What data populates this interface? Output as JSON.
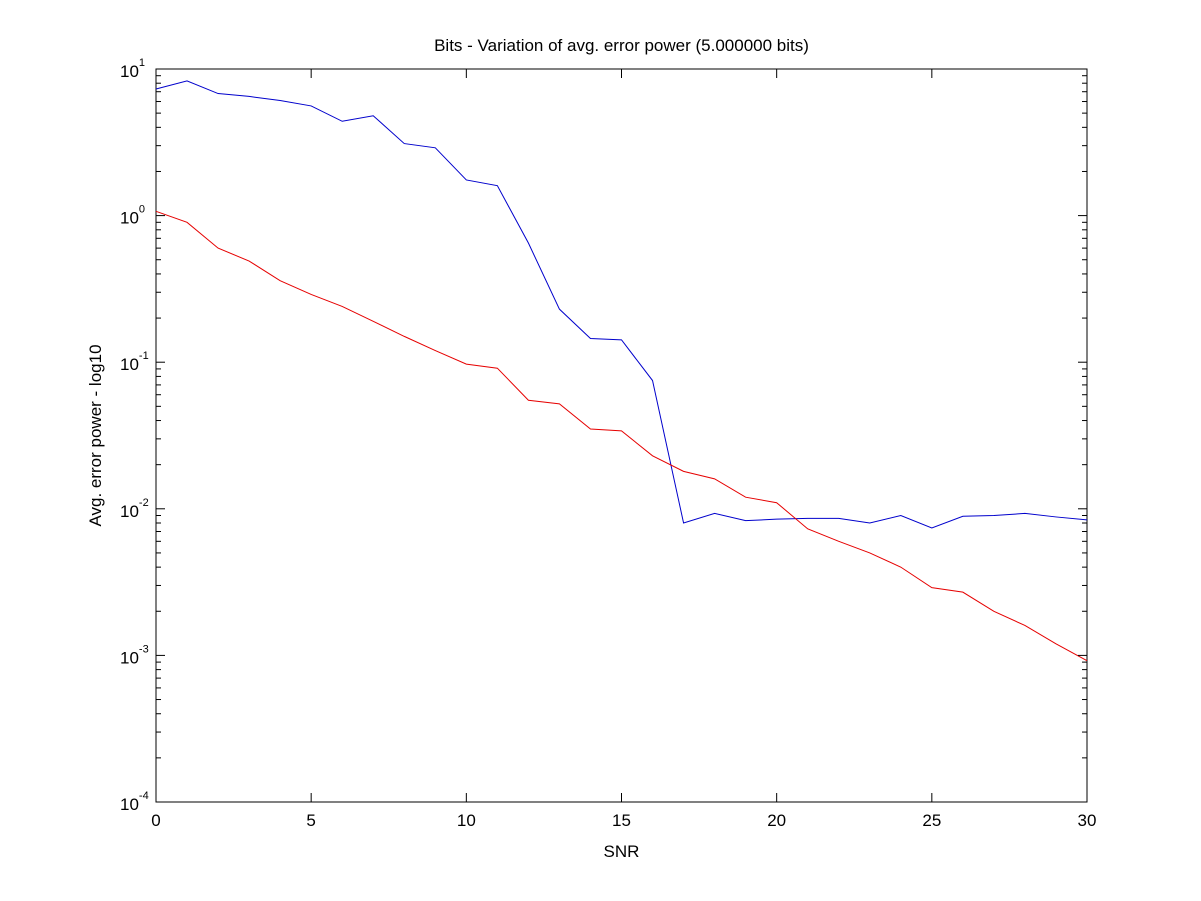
{
  "chart_data": {
    "type": "line",
    "title": "Bits - Variation of avg. error power (5.000000 bits)",
    "xlabel": "SNR",
    "ylabel": "Avg. error power - log10",
    "xlim": [
      0,
      30
    ],
    "ylim": [
      0.0001,
      10
    ],
    "yscale": "log",
    "grid": false,
    "legend": "none",
    "x_ticks": [
      0,
      5,
      10,
      15,
      20,
      25,
      30
    ],
    "y_ticks": [
      {
        "value": 0.0001,
        "base": "10",
        "exp": "-4"
      },
      {
        "value": 0.001,
        "base": "10",
        "exp": "-3"
      },
      {
        "value": 0.01,
        "base": "10",
        "exp": "-2"
      },
      {
        "value": 0.1,
        "base": "10",
        "exp": "-1"
      },
      {
        "value": 1,
        "base": "10",
        "exp": "0"
      },
      {
        "value": 10,
        "base": "10",
        "exp": "1"
      }
    ],
    "x": [
      0,
      1,
      2,
      3,
      4,
      5,
      6,
      7,
      8,
      9,
      10,
      11,
      12,
      13,
      14,
      15,
      16,
      17,
      18,
      19,
      20,
      21,
      22,
      23,
      24,
      25,
      26,
      27,
      28,
      29,
      30
    ],
    "series": [
      {
        "color": "#0000cc",
        "values": [
          7.3,
          8.3,
          6.8,
          6.5,
          6.1,
          5.6,
          4.4,
          4.8,
          3.1,
          2.9,
          1.75,
          1.6,
          0.65,
          0.23,
          0.145,
          0.142,
          0.075,
          0.008,
          0.0093,
          0.0083,
          0.0085,
          0.0086,
          0.0086,
          0.008,
          0.009,
          0.0074,
          0.0089,
          0.009,
          0.0093,
          0.0088,
          0.0084
        ]
      },
      {
        "color": "#e60000",
        "values": [
          1.07,
          0.9,
          0.6,
          0.49,
          0.36,
          0.29,
          0.24,
          0.19,
          0.15,
          0.12,
          0.097,
          0.091,
          0.055,
          0.052,
          0.035,
          0.034,
          0.023,
          0.018,
          0.016,
          0.012,
          0.011,
          0.0073,
          0.006,
          0.005,
          0.004,
          0.0029,
          0.0027,
          0.002,
          0.0016,
          0.0012,
          0.00092
        ]
      }
    ]
  }
}
